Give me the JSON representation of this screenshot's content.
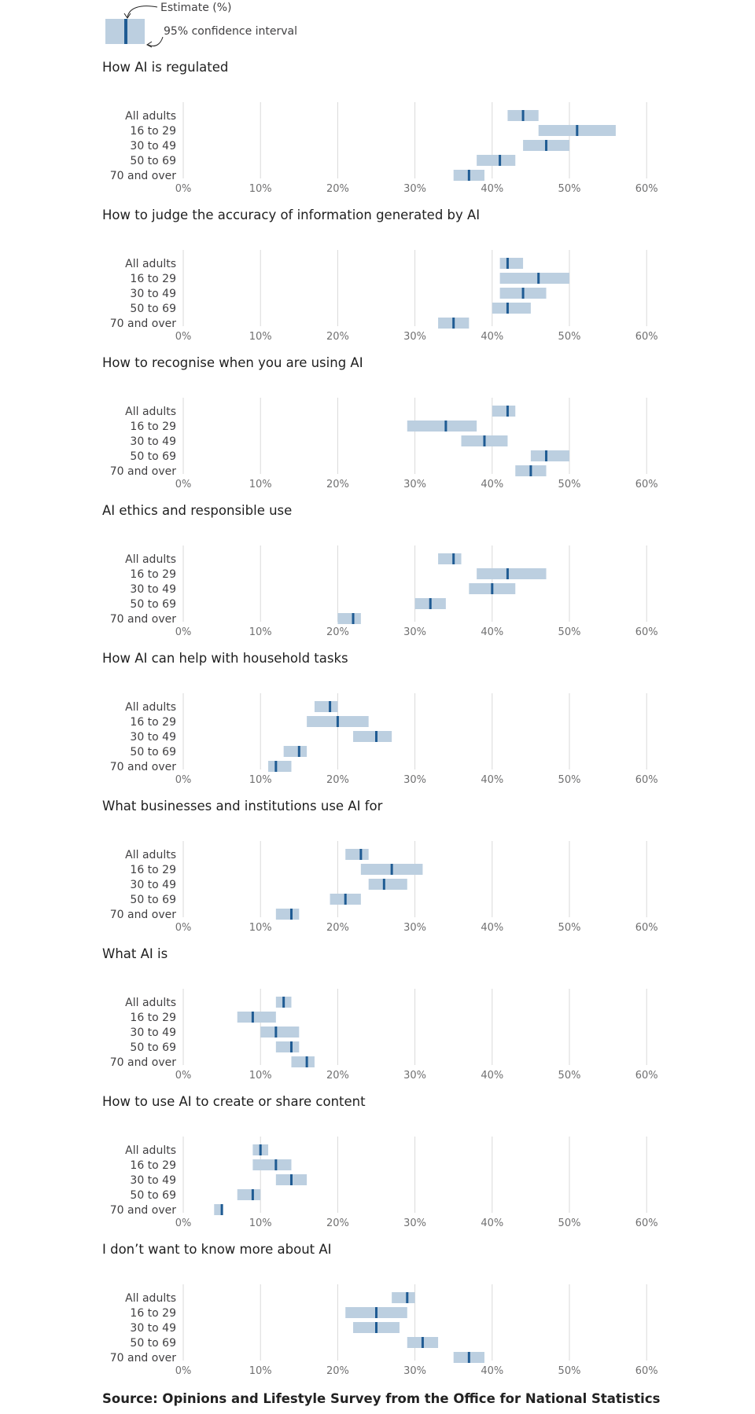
{
  "legend": {
    "estimate_label": "Estimate (%)",
    "ci_label": "95% confidence interval"
  },
  "colors": {
    "interval": "#bccfe0",
    "estimate": "#1f5b93",
    "grid": "#d9d9d9",
    "text": "#414042",
    "tick": "#707071"
  },
  "chart_data": [
    {
      "type": "dot-interval",
      "title": "How AI is regulated",
      "categories": [
        "All adults",
        "16 to 29",
        "30 to 49",
        "50 to 69",
        "70 and over"
      ],
      "values": [
        44,
        51,
        47,
        41,
        37
      ],
      "ci_low": [
        42,
        46,
        44,
        38,
        35
      ],
      "ci_high": [
        46,
        56,
        50,
        43,
        39
      ],
      "xticks": [
        "0%",
        "10%",
        "20%",
        "30%",
        "40%",
        "50%",
        "60%"
      ],
      "xlim": [
        0,
        60
      ],
      "grid": true
    },
    {
      "type": "dot-interval",
      "title": "How to judge the accuracy of information generated by AI",
      "categories": [
        "All adults",
        "16 to 29",
        "30 to 49",
        "50 to 69",
        "70 and over"
      ],
      "values": [
        42,
        46,
        44,
        42,
        35
      ],
      "ci_low": [
        41,
        41,
        41,
        40,
        33
      ],
      "ci_high": [
        44,
        50,
        47,
        45,
        37
      ],
      "xticks": [
        "0%",
        "10%",
        "20%",
        "30%",
        "40%",
        "50%",
        "60%"
      ],
      "xlim": [
        0,
        60
      ],
      "grid": true
    },
    {
      "type": "dot-interval",
      "title": "How to recognise when you are using AI",
      "categories": [
        "All adults",
        "16 to 29",
        "30 to 49",
        "50 to 69",
        "70 and over"
      ],
      "values": [
        42,
        34,
        39,
        47,
        45
      ],
      "ci_low": [
        40,
        29,
        36,
        45,
        43
      ],
      "ci_high": [
        43,
        38,
        42,
        50,
        47
      ],
      "xticks": [
        "0%",
        "10%",
        "20%",
        "30%",
        "40%",
        "50%",
        "60%"
      ],
      "xlim": [
        0,
        60
      ],
      "grid": true
    },
    {
      "type": "dot-interval",
      "title": "AI ethics and responsible use",
      "categories": [
        "All adults",
        "16 to 29",
        "30 to 49",
        "50 to 69",
        "70 and over"
      ],
      "values": [
        35,
        42,
        40,
        32,
        22
      ],
      "ci_low": [
        33,
        38,
        37,
        30,
        20
      ],
      "ci_high": [
        36,
        47,
        43,
        34,
        23
      ],
      "xticks": [
        "0%",
        "10%",
        "20%",
        "30%",
        "40%",
        "50%",
        "60%"
      ],
      "xlim": [
        0,
        60
      ],
      "grid": true
    },
    {
      "type": "dot-interval",
      "title": "How AI can help with household tasks",
      "categories": [
        "All adults",
        "16 to 29",
        "30 to 49",
        "50 to 69",
        "70 and over"
      ],
      "values": [
        19,
        20,
        25,
        15,
        12
      ],
      "ci_low": [
        17,
        16,
        22,
        13,
        11
      ],
      "ci_high": [
        20,
        24,
        27,
        16,
        14
      ],
      "xticks": [
        "0%",
        "10%",
        "20%",
        "30%",
        "40%",
        "50%",
        "60%"
      ],
      "xlim": [
        0,
        60
      ],
      "grid": true
    },
    {
      "type": "dot-interval",
      "title": "What businesses and institutions use AI for",
      "categories": [
        "All adults",
        "16 to 29",
        "30 to 49",
        "50 to 69",
        "70 and over"
      ],
      "values": [
        23,
        27,
        26,
        21,
        14
      ],
      "ci_low": [
        21,
        23,
        24,
        19,
        12
      ],
      "ci_high": [
        24,
        31,
        29,
        23,
        15
      ],
      "xticks": [
        "0%",
        "10%",
        "20%",
        "30%",
        "40%",
        "50%",
        "60%"
      ],
      "xlim": [
        0,
        60
      ],
      "grid": true
    },
    {
      "type": "dot-interval",
      "title": "What AI is",
      "categories": [
        "All adults",
        "16 to 29",
        "30 to 49",
        "50 to 69",
        "70 and over"
      ],
      "values": [
        13,
        9,
        12,
        14,
        16
      ],
      "ci_low": [
        12,
        7,
        10,
        12,
        14
      ],
      "ci_high": [
        14,
        12,
        15,
        15,
        17
      ],
      "xticks": [
        "0%",
        "10%",
        "20%",
        "30%",
        "40%",
        "50%",
        "60%"
      ],
      "xlim": [
        0,
        60
      ],
      "grid": true
    },
    {
      "type": "dot-interval",
      "title": "How to use AI to create or share content",
      "categories": [
        "All adults",
        "16 to 29",
        "30 to 49",
        "50 to 69",
        "70 and over"
      ],
      "values": [
        10,
        12,
        14,
        9,
        5
      ],
      "ci_low": [
        9,
        9,
        12,
        7,
        4
      ],
      "ci_high": [
        11,
        14,
        16,
        10,
        5
      ],
      "xticks": [
        "0%",
        "10%",
        "20%",
        "30%",
        "40%",
        "50%",
        "60%"
      ],
      "xlim": [
        0,
        60
      ],
      "grid": true
    },
    {
      "type": "dot-interval",
      "title": "I don’t want to know more about AI",
      "categories": [
        "All adults",
        "16 to 29",
        "30 to 49",
        "50 to 69",
        "70 and over"
      ],
      "values": [
        29,
        25,
        25,
        31,
        37
      ],
      "ci_low": [
        27,
        21,
        22,
        29,
        35
      ],
      "ci_high": [
        30,
        29,
        28,
        33,
        39
      ],
      "xticks": [
        "0%",
        "10%",
        "20%",
        "30%",
        "40%",
        "50%",
        "60%"
      ],
      "xlim": [
        0,
        60
      ],
      "grid": true
    }
  ],
  "source": "Source: Opinions and Lifestyle Survey from the Office for National Statistics"
}
